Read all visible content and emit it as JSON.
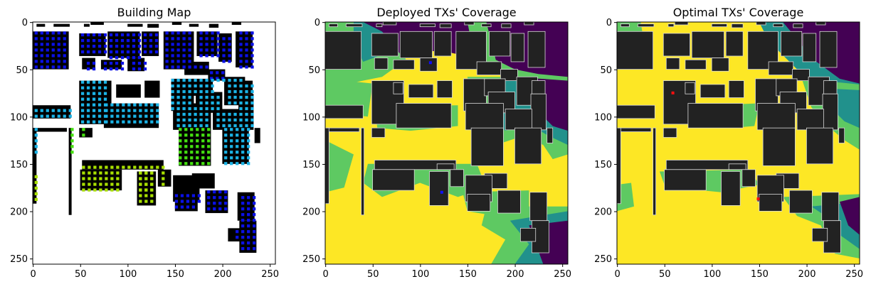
{
  "chart_data": [
    {
      "type": "heatmap",
      "title": "Building Map",
      "xlabel": "",
      "ylabel": "",
      "xlim": [
        0,
        256
      ],
      "ylim": [
        256,
        0
      ],
      "xticks": [
        0,
        50,
        100,
        150,
        200,
        250
      ],
      "yticks": [
        0,
        50,
        100,
        150,
        200,
        250
      ],
      "grid": false,
      "colors": {
        "background": "#ffffff",
        "building": "#000000",
        "group_blue": "#0a10e8",
        "group_cyan": "#1ab3e6",
        "group_green": "#44e010",
        "group_yellowgreen": "#a8e000"
      }
    },
    {
      "type": "heatmap",
      "title": "Deployed TXs' Coverage",
      "xlabel": "",
      "ylabel": "",
      "xlim": [
        0,
        256
      ],
      "ylim": [
        256,
        0
      ],
      "xticks": [
        0,
        50,
        100,
        150,
        200,
        250
      ],
      "yticks": [
        0,
        50,
        100,
        150,
        200,
        250
      ],
      "grid": false,
      "colormap": "viridis",
      "colors": {
        "high": "#fde725",
        "mid_high": "#5ec962",
        "mid": "#21918c",
        "low": "#440154",
        "building": "#222222"
      },
      "tx_markers": [
        {
          "x": 111,
          "y": 43,
          "color": "#1010ff"
        },
        {
          "x": 123,
          "y": 180,
          "color": "#1010ff"
        }
      ]
    },
    {
      "type": "heatmap",
      "title": "Optimal TXs' Coverage",
      "xlabel": "",
      "ylabel": "",
      "xlim": [
        0,
        256
      ],
      "ylim": [
        256,
        0
      ],
      "xticks": [
        0,
        50,
        100,
        150,
        200,
        250
      ],
      "yticks": [
        0,
        50,
        100,
        150,
        200,
        250
      ],
      "grid": false,
      "colormap": "viridis",
      "colors": {
        "high": "#fde725",
        "mid_high": "#5ec962",
        "mid": "#21918c",
        "low": "#440154",
        "building": "#222222"
      },
      "tx_markers": [
        {
          "x": 59,
          "y": 75,
          "color": "#ff1010"
        },
        {
          "x": 149,
          "y": 187,
          "color": "#ff1010"
        }
      ]
    }
  ]
}
